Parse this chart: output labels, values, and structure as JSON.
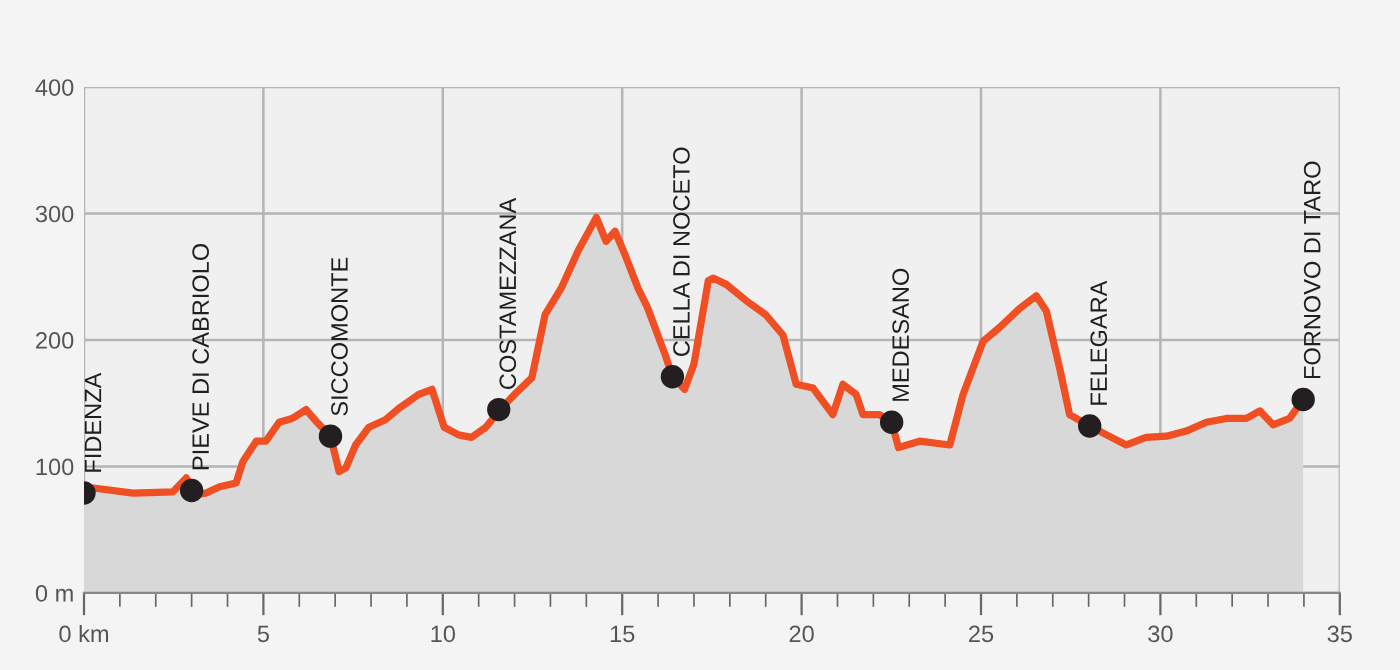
{
  "chart_data": {
    "type": "area",
    "x": [
      0,
      0.26,
      1.37,
      2.48,
      2.85,
      3.13,
      3.4,
      3.78,
      4.24,
      4.43,
      4.8,
      5.07,
      5.44,
      5.8,
      6.19,
      6.46,
      6.87,
      7.11,
      7.3,
      7.57,
      7.94,
      8.4,
      8.78,
      9.33,
      9.7,
      10.04,
      10.44,
      10.8,
      11.2,
      11.6,
      12.0,
      12.48,
      12.85,
      13.3,
      13.78,
      14.28,
      14.55,
      14.8,
      15.07,
      15.44,
      15.7,
      16.19,
      16.4,
      16.74,
      17.0,
      17.4,
      17.53,
      17.9,
      18.46,
      19.0,
      19.48,
      19.85,
      20.32,
      20.87,
      21.15,
      21.52,
      21.71,
      22.17,
      22.51,
      22.7,
      23.29,
      24.13,
      24.5,
      25.06,
      25.52,
      26.08,
      26.54,
      26.82,
      27.19,
      27.47,
      28.03,
      28.5,
      29.05,
      29.6,
      30.17,
      30.72,
      31.28,
      31.84,
      32.4,
      32.77,
      33.14,
      33.6,
      33.98
    ],
    "series": [
      {
        "color": "#f04e23",
        "values": [
          79,
          83,
          79,
          80,
          91,
          78,
          79,
          84,
          87,
          104,
          120,
          120,
          135,
          138,
          145,
          136,
          124,
          96,
          99,
          117,
          131,
          137,
          146,
          157,
          161,
          131,
          125,
          123,
          131,
          145,
          157,
          170,
          220,
          241,
          271,
          297,
          278,
          286,
          268,
          241,
          226,
          189,
          171,
          161,
          181,
          247,
          249,
          244,
          231,
          220,
          204,
          165,
          162,
          141,
          165,
          157,
          141,
          141,
          135,
          115,
          120,
          117,
          157,
          199,
          210,
          225,
          235,
          223,
          178,
          141,
          132,
          125,
          117,
          123,
          124,
          128,
          135,
          138,
          138,
          144,
          133,
          138,
          153
        ]
      },
      {
        "type": "scatter",
        "color": "#231f20",
        "x": [
          0,
          3.0,
          6.87,
          11.56,
          16.4,
          22.51,
          28.03,
          33.98
        ],
        "values": [
          79,
          81,
          124,
          145,
          171,
          135,
          132,
          153
        ]
      }
    ],
    "annotations": [
      {
        "text": "FIDENZA",
        "x": 0,
        "y": 79
      },
      {
        "text": "PIEVE DI CABRIOLO",
        "x": 3.0,
        "y": 81
      },
      {
        "text": "SICCOMONTE",
        "x": 6.87,
        "y": 124
      },
      {
        "text": "COSTAMEZZANA",
        "x": 11.56,
        "y": 145
      },
      {
        "text": "CELLA DI NOCETO",
        "x": 16.4,
        "y": 171
      },
      {
        "text": "MEDESANO",
        "x": 22.51,
        "y": 135
      },
      {
        "text": "FELEGARA",
        "x": 28.03,
        "y": 132
      },
      {
        "text": "FORNOVO DI TARO",
        "x": 33.98,
        "y": 153
      }
    ],
    "xlim": [
      0,
      35
    ],
    "xticks": [
      {
        "value": 0,
        "label": "0 km"
      },
      {
        "value": 1,
        "label": null
      },
      {
        "value": 2,
        "label": null
      },
      {
        "value": 3,
        "label": null
      },
      {
        "value": 4,
        "label": null
      },
      5,
      {
        "value": 6,
        "label": null
      },
      {
        "value": 7,
        "label": null
      },
      {
        "value": 8,
        "label": null
      },
      {
        "value": 9,
        "label": null
      },
      10,
      {
        "value": 11,
        "label": null
      },
      {
        "value": 12,
        "label": null
      },
      {
        "value": 13,
        "label": null
      },
      {
        "value": 14,
        "label": null
      },
      15,
      {
        "value": 16,
        "label": null
      },
      {
        "value": 17,
        "label": null
      },
      {
        "value": 18,
        "label": null
      },
      {
        "value": 19,
        "label": null
      },
      20,
      {
        "value": 21,
        "label": null
      },
      {
        "value": 22,
        "label": null
      },
      {
        "value": 23,
        "label": null
      },
      {
        "value": 24,
        "label": null
      },
      25,
      {
        "value": 26,
        "label": null
      },
      {
        "value": 27,
        "label": null
      },
      {
        "value": 28,
        "label": null
      },
      {
        "value": 29,
        "label": null
      },
      30,
      {
        "value": 31,
        "label": null
      },
      {
        "value": 32,
        "label": null
      },
      {
        "value": 33,
        "label": null
      },
      {
        "value": 34,
        "label": null
      },
      35
    ],
    "ylim": [
      0,
      400
    ],
    "yticks": [
      {
        "value": 0,
        "label": "0 m"
      },
      100,
      200,
      300,
      400
    ],
    "grid": true,
    "legend": false
  }
}
